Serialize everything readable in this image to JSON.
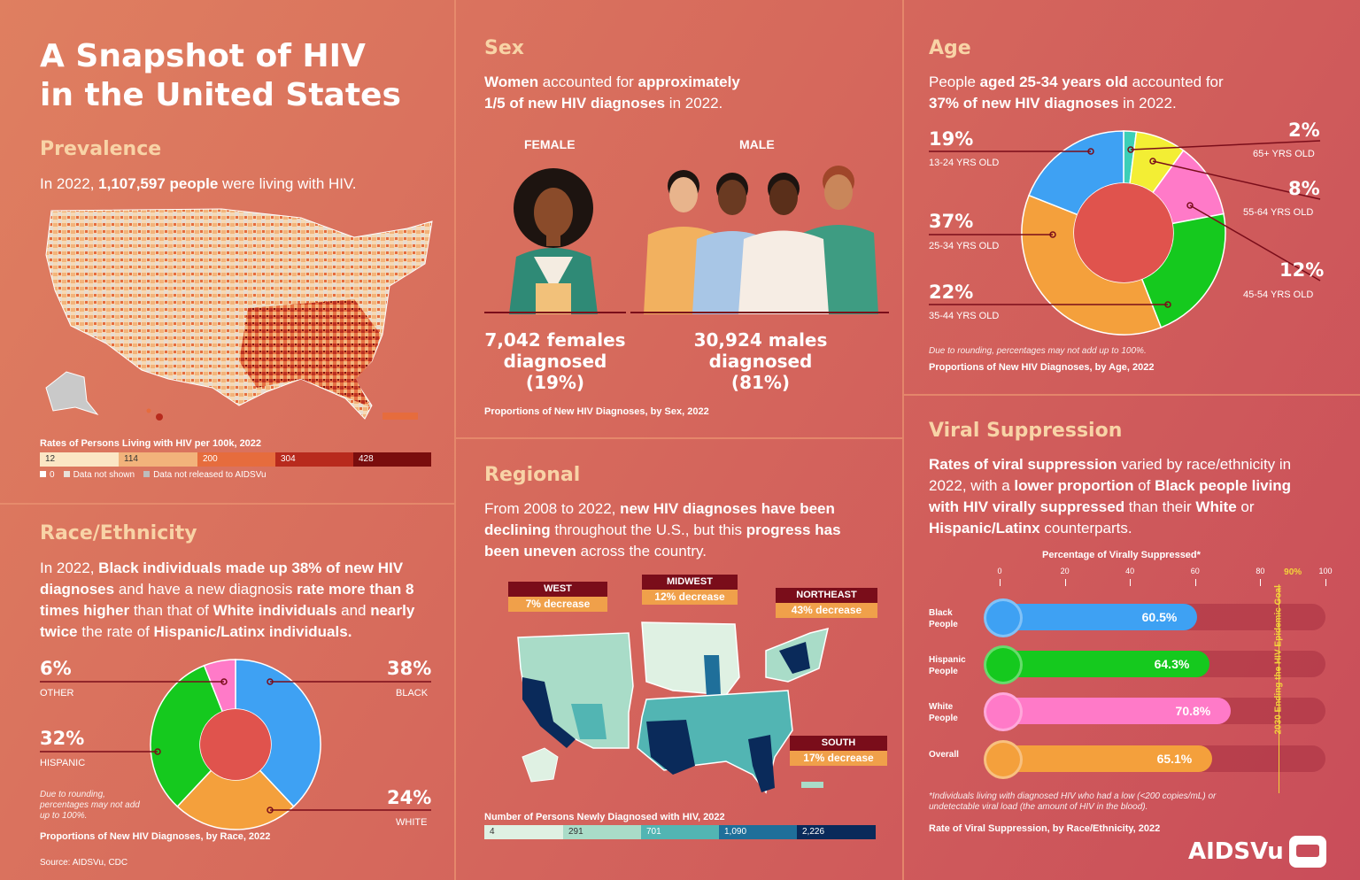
{
  "title_line1": "A Snapshot of HIV",
  "title_line2": "in the United States",
  "prevalence": {
    "heading": "Prevalence",
    "text_pre": "In 2022, ",
    "text_bold": "1,107,597 people",
    "text_post": " were living with HIV.",
    "legend_title": "Rates of Persons Living with HIV per 100k, 2022",
    "legend_values": [
      "12",
      "114",
      "200",
      "304",
      "428"
    ],
    "legend_colors": [
      "#fbe6c4",
      "#f2b37b",
      "#e66c3d",
      "#b82a1d",
      "#7a0d0d"
    ],
    "legend_notes": [
      "0",
      "Data not shown",
      "Data not released to AIDSVu"
    ]
  },
  "race": {
    "heading": "Race/Ethnicity",
    "t1": "In 2022, ",
    "t2": "Black individuals made up 38% of new HIV diagnoses",
    "t3": " and have a new diagnosis ",
    "t4": "rate more than 8 times higher",
    "t5": " than that of ",
    "t6": "White individuals",
    "t7": " and ",
    "t8": "nearly twice",
    "t9": " the rate of ",
    "t10": "Hispanic/Latinx individuals.",
    "note": "Due to rounding, percentages may not add up to 100%.",
    "caption": "Proportions of New HIV Diagnoses, by Race, 2022",
    "source": "Source: AIDSVu, CDC"
  },
  "sex": {
    "heading": "Sex",
    "t1": "Women",
    "t2": " accounted for ",
    "t3": "approximately",
    "t4": "1/5 of new HIV diagnoses",
    "t5": " in 2022.",
    "female_label": "FEMALE",
    "male_label": "MALE",
    "female_stat_1": "7,042 females",
    "female_stat_2": "diagnosed",
    "female_stat_3": "(19%)",
    "male_stat_1": "30,924 males",
    "male_stat_2": "diagnosed",
    "male_stat_3": "(81%)",
    "caption": "Proportions of New HIV Diagnoses, by Sex, 2022"
  },
  "regional": {
    "heading": "Regional",
    "t1": "From 2008 to 2022, ",
    "t2": "new HIV diagnoses have been declining",
    "t3": " throughout the U.S., but this ",
    "t4": "progress has been uneven",
    "t5": " across the country.",
    "regions": [
      {
        "name": "WEST",
        "change": "7% decrease"
      },
      {
        "name": "MIDWEST",
        "change": "12% decrease"
      },
      {
        "name": "NORTHEAST",
        "change": "43% decrease"
      },
      {
        "name": "SOUTH",
        "change": "17% decrease"
      }
    ],
    "legend_title": "Number of Persons Newly Diagnosed with HIV, 2022",
    "legend_values": [
      "4",
      "291",
      "701",
      "1,090",
      "2,226"
    ],
    "legend_colors": [
      "#dff1e3",
      "#a9dcc8",
      "#52b5b3",
      "#1f6f9a",
      "#0a2a5a"
    ]
  },
  "age": {
    "heading": "Age",
    "t1": "People ",
    "t2": "aged 25-34 years old",
    "t3": " accounted for",
    "t4": "37% of new HIV diagnoses",
    "t5": " in 2022.",
    "note": "Due to rounding, percentages may not add up to 100%.",
    "caption": "Proportions of New HIV Diagnoses, by Age, 2022"
  },
  "viral": {
    "heading": "Viral Suppression",
    "t1": "Rates of viral suppression",
    "t2": " varied by race/ethnicity in 2022, with a ",
    "t3": "lower proportion",
    "t4": " of ",
    "t5": "Black people living with HIV virally suppressed",
    "t6": " than their ",
    "t7": "White",
    "t8": " or ",
    "t9": "Hispanic/Latinx",
    "t10": " counterparts.",
    "axis_title": "Percentage of Virally Suppressed*",
    "goal_label": "90%",
    "goal_text": "2030 Ending the HIV Epidemic Goal",
    "footnote": "*Individuals living with diagnosed HIV who had a low (<200 copies/mL) or undetectable viral load (the amount of HIV in the blood).",
    "caption": "Rate of Viral Suppression, by Race/Ethnicity, 2022",
    "logo": "AIDSVu"
  },
  "chart_data": [
    {
      "type": "pie",
      "caption": "Proportions of New HIV Diagnoses, by Race, 2022",
      "categories": [
        "BLACK",
        "WHITE",
        "HISPANIC",
        "OTHER"
      ],
      "values": [
        38,
        24,
        32,
        6
      ],
      "labels": [
        "38%",
        "24%",
        "32%",
        "6%"
      ],
      "colors": [
        "#3ea1f3",
        "#f4a03c",
        "#15c91e",
        "#ff7ac8"
      ]
    },
    {
      "type": "pie",
      "caption": "Proportions of New HIV Diagnoses, by Age, 2022",
      "categories": [
        "65+ YRS OLD",
        "55-64 YRS OLD",
        "45-54 YRS OLD",
        "35-44 YRS OLD",
        "25-34 YRS OLD",
        "13-24 YRS OLD"
      ],
      "values": [
        2,
        8,
        12,
        22,
        37,
        19
      ],
      "labels": [
        "2%",
        "8%",
        "12%",
        "22%",
        "37%",
        "19%"
      ],
      "colors": [
        "#3ccfb7",
        "#f3ee34",
        "#ff7ac8",
        "#15c91e",
        "#f4a03c",
        "#3ea1f3"
      ]
    },
    {
      "type": "bar",
      "caption": "Rate of Viral Suppression, by Race/Ethnicity, 2022",
      "categories": [
        "Black People",
        "Hispanic People",
        "White People",
        "Overall"
      ],
      "values": [
        60.5,
        64.3,
        70.8,
        65.1
      ],
      "labels": [
        "60.5%",
        "64.3%",
        "70.8%",
        "65.1%"
      ],
      "colors": [
        "#3ea1f3",
        "#15c91e",
        "#ff7ac8",
        "#f4a03c"
      ],
      "xlim": [
        0,
        100
      ],
      "ticks": [
        0,
        20,
        40,
        60,
        80,
        100
      ],
      "goal": 90
    }
  ]
}
